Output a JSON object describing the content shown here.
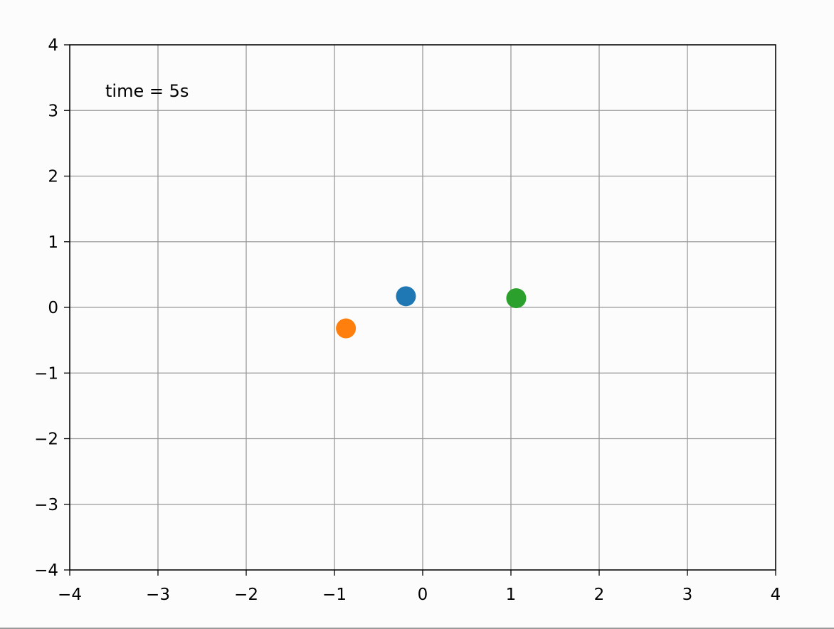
{
  "chart_data": {
    "type": "scatter",
    "title": "",
    "xlabel": "",
    "ylabel": "",
    "xlim": [
      -4,
      4
    ],
    "ylim": [
      -4,
      4
    ],
    "grid": true,
    "x_ticks": [
      -4,
      -3,
      -2,
      -1,
      0,
      1,
      2,
      3,
      4
    ],
    "y_ticks": [
      -4,
      -3,
      -2,
      -1,
      0,
      1,
      2,
      3,
      4
    ],
    "x_tick_labels": [
      "−4",
      "−3",
      "−2",
      "−1",
      "0",
      "1",
      "2",
      "3",
      "4"
    ],
    "y_tick_labels": [
      "−4",
      "−3",
      "−2",
      "−1",
      "0",
      "1",
      "2",
      "3",
      "4"
    ],
    "annotation": "time = 5s",
    "points": [
      {
        "x": -0.19,
        "y": 0.17,
        "color": "#1f77b4"
      },
      {
        "x": -0.87,
        "y": -0.32,
        "color": "#ff7f0e"
      },
      {
        "x": 1.06,
        "y": 0.14,
        "color": "#2ca02c"
      }
    ]
  }
}
